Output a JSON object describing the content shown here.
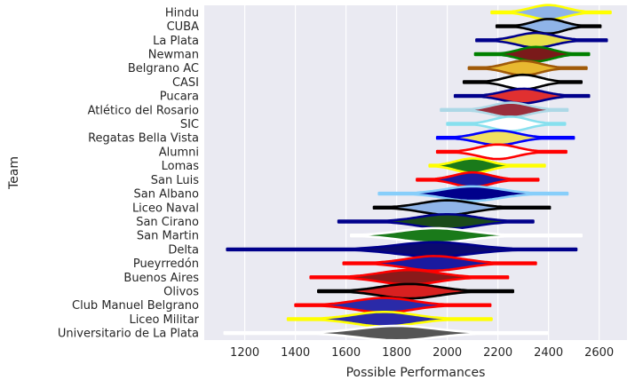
{
  "chart_data": {
    "type": "violin",
    "orientation": "horizontal",
    "xlabel": "Possible Performances",
    "ylabel": "Team",
    "xlim": [
      1040,
      2710
    ],
    "xticks": [
      1200,
      1400,
      1600,
      1800,
      2000,
      2200,
      2400,
      2600
    ],
    "grid": true,
    "background": "#eaeaf2",
    "grid_color": "#ffffff",
    "teams": [
      {
        "name": "Hindu",
        "min": 2175,
        "max": 2645,
        "peak": 2400,
        "fill": "#8fb4e8",
        "edge": "#ffff00"
      },
      {
        "name": "CUBA",
        "min": 2195,
        "max": 2605,
        "peak": 2400,
        "fill": "#8fb4e8",
        "edge": "#000000"
      },
      {
        "name": "La Plata",
        "min": 2115,
        "max": 2630,
        "peak": 2350,
        "fill": "#e8e04a",
        "edge": "#00008b"
      },
      {
        "name": "Newman",
        "min": 2110,
        "max": 2560,
        "peak": 2350,
        "fill": "#7a1a1a",
        "edge": "#008000"
      },
      {
        "name": "Belgrano AC",
        "min": 2085,
        "max": 2550,
        "peak": 2300,
        "fill": "#e8b830",
        "edge": "#a05a0a"
      },
      {
        "name": "CASI",
        "min": 2065,
        "max": 2530,
        "peak": 2300,
        "fill": "#ffffff",
        "edge": "#000000"
      },
      {
        "name": "Pucara",
        "min": 2030,
        "max": 2560,
        "peak": 2300,
        "fill": "#e03030",
        "edge": "#00008b"
      },
      {
        "name": "Atlético del Rosario",
        "min": 1975,
        "max": 2475,
        "peak": 2250,
        "fill": "#9a2e3c",
        "edge": "#add8e6"
      },
      {
        "name": "SIC",
        "min": 2000,
        "max": 2465,
        "peak": 2250,
        "fill": "#ffffff",
        "edge": "#87e0ee"
      },
      {
        "name": "Regatas Bella Vista",
        "min": 1960,
        "max": 2500,
        "peak": 2200,
        "fill": "#f0e060",
        "edge": "#0000ff"
      },
      {
        "name": "Alumni",
        "min": 1960,
        "max": 2470,
        "peak": 2200,
        "fill": "#ffffff",
        "edge": "#ff0000"
      },
      {
        "name": "Lomas",
        "min": 1930,
        "max": 2385,
        "peak": 2100,
        "fill": "#1a7a1a",
        "edge": "#ffff00"
      },
      {
        "name": "San Luis",
        "min": 1880,
        "max": 2360,
        "peak": 2100,
        "fill": "#1a1aa0",
        "edge": "#ff0000"
      },
      {
        "name": "San Albano",
        "min": 1730,
        "max": 2475,
        "peak": 2100,
        "fill": "#00008b",
        "edge": "#87cefa"
      },
      {
        "name": "Liceo Naval",
        "min": 1710,
        "max": 2405,
        "peak": 2000,
        "fill": "#8fb4e8",
        "edge": "#000000"
      },
      {
        "name": "San Cirano",
        "min": 1570,
        "max": 2340,
        "peak": 2000,
        "fill": "#1a4a1a",
        "edge": "#00008b"
      },
      {
        "name": "San Martin",
        "min": 1620,
        "max": 2530,
        "peak": 1950,
        "fill": "#1a7a1a",
        "edge": "#ffffff"
      },
      {
        "name": "Delta",
        "min": 1130,
        "max": 2510,
        "peak": 1950,
        "fill": "#0a0a70",
        "edge": "#00008b"
      },
      {
        "name": "Pueyrredón",
        "min": 1590,
        "max": 2350,
        "peak": 1950,
        "fill": "#1a1aa0",
        "edge": "#ff0000"
      },
      {
        "name": "Buenos Aires",
        "min": 1460,
        "max": 2240,
        "peak": 1850,
        "fill": "#8a1a1a",
        "edge": "#ff0000"
      },
      {
        "name": "Olivos",
        "min": 1490,
        "max": 2260,
        "peak": 1850,
        "fill": "#d82020",
        "edge": "#000000"
      },
      {
        "name": "Club Manuel Belgrano",
        "min": 1400,
        "max": 2170,
        "peak": 1750,
        "fill": "#2a2aa8",
        "edge": "#ff0000"
      },
      {
        "name": "Liceo Militar",
        "min": 1370,
        "max": 2175,
        "peak": 1750,
        "fill": "#2a2aa8",
        "edge": "#ffff00"
      },
      {
        "name": "Universitario de La Plata",
        "min": 1120,
        "max": 2395,
        "peak": 1800,
        "fill": "#555555",
        "edge": "#ffffff"
      }
    ]
  }
}
